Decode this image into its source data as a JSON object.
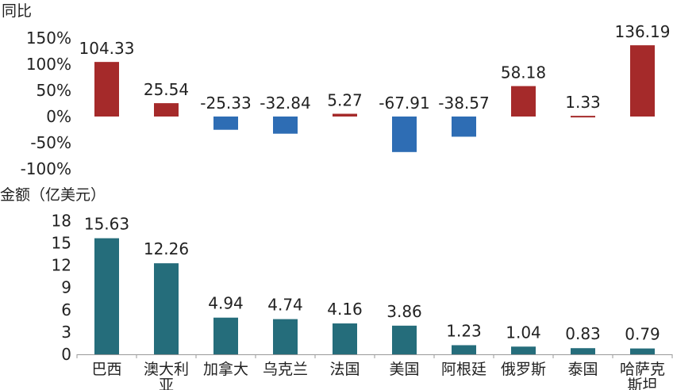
{
  "chart_data": [
    {
      "type": "bar",
      "ylabel": "同比",
      "ylim": [
        -100,
        150
      ],
      "yticks": [
        "150%",
        "100%",
        "50%",
        "0%",
        "-50%",
        "-100%"
      ],
      "tick_values": [
        150,
        100,
        50,
        0,
        -50,
        -100
      ],
      "categories": [
        "巴西",
        "澳大利亚",
        "加拿大",
        "乌克兰",
        "法国",
        "美国",
        "阿根廷",
        "俄罗斯",
        "泰国",
        "哈萨克斯坦"
      ],
      "values": [
        104.33,
        25.54,
        -25.33,
        -32.84,
        5.27,
        -67.91,
        -38.57,
        58.18,
        1.33,
        136.19
      ],
      "value_labels": [
        "104.33",
        "25.54",
        "-25.33",
        "-32.84",
        "5.27",
        "-67.91",
        "-38.57",
        "58.18",
        "1.33",
        "136.19"
      ],
      "colors": {
        "positive": "#a52a2a",
        "negative": "#2e6db4"
      },
      "grid": false
    },
    {
      "type": "bar",
      "ylabel": "金额（亿美元）",
      "ylim": [
        0,
        18
      ],
      "yticks": [
        "18",
        "15",
        "12",
        "9",
        "6",
        "3",
        "0"
      ],
      "tick_values": [
        18,
        15,
        12,
        9,
        6,
        3,
        0
      ],
      "categories": [
        "巴西",
        "澳大利亚",
        "加拿大",
        "乌克兰",
        "法国",
        "美国",
        "阿根廷",
        "俄罗斯",
        "泰国",
        "哈萨克斯坦"
      ],
      "category_lines": [
        [
          "巴西"
        ],
        [
          "澳大利",
          "亚"
        ],
        [
          "加拿大"
        ],
        [
          "乌克兰"
        ],
        [
          "法国"
        ],
        [
          "美国"
        ],
        [
          "阿根廷"
        ],
        [
          "俄罗斯"
        ],
        [
          "泰国"
        ],
        [
          "哈萨克",
          "斯坦"
        ]
      ],
      "values": [
        15.63,
        12.26,
        4.94,
        4.74,
        4.16,
        3.86,
        1.23,
        1.04,
        0.83,
        0.79
      ],
      "value_labels": [
        "15.63",
        "12.26",
        "4.94",
        "4.74",
        "4.16",
        "3.86",
        "1.23",
        "1.04",
        "0.83",
        "0.79"
      ],
      "colors": {
        "bar": "#256d7b",
        "axis": "#999999"
      },
      "grid": false
    }
  ]
}
